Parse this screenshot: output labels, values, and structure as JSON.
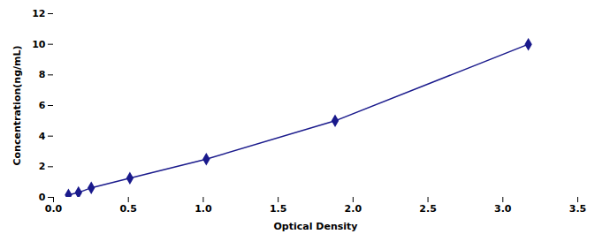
{
  "chart_data": {
    "type": "line",
    "x": [
      0.1,
      0.167,
      0.252,
      0.51,
      1.02,
      1.88,
      3.17
    ],
    "values": [
      0.156,
      0.312,
      0.625,
      1.25,
      2.5,
      5.0,
      10.0
    ],
    "color": "#1a1a8c",
    "marker": "diamond",
    "xlabel": "Optical Density",
    "ylabel": "Concentration(ng/mL)",
    "xlim": [
      0,
      3.5
    ],
    "ylim": [
      0,
      12
    ],
    "xticks": [
      {
        "value": 0,
        "label": "0.0"
      },
      0.5,
      {
        "value": 1,
        "label": "1.0"
      },
      1.5,
      {
        "value": 2,
        "label": "2.0"
      },
      2.5,
      {
        "value": 3,
        "label": "3.0"
      },
      3.5
    ],
    "yticks": [
      0,
      2,
      4,
      6,
      8,
      10,
      12
    ]
  }
}
